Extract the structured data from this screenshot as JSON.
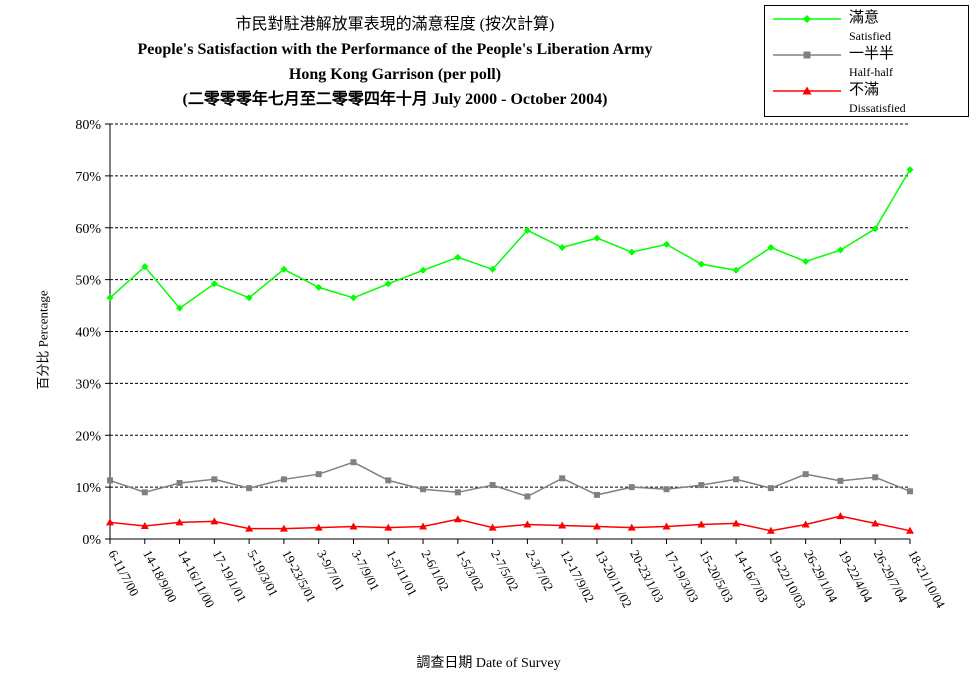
{
  "header": {
    "title_zh": "市民對駐港解放軍表現的滿意程度 (按次計算)",
    "title_en_1": "People's Satisfaction with the Performance of the People's Liberation Army",
    "title_en_2": "Hong Kong Garrison (per poll)",
    "subtitle": "(二零零零年七月至二零零四年十月 July 2000 -  October 2004)"
  },
  "legend": [
    {
      "zh": "滿意",
      "en": "Satisfied",
      "color": "#00ff00",
      "marker": "diamond"
    },
    {
      "zh": "一半半",
      "en": "Half-half",
      "color": "#808080",
      "marker": "square"
    },
    {
      "zh": "不滿",
      "en": "Dissatisfied",
      "color": "#ff0000",
      "marker": "triangle"
    }
  ],
  "chart_data": {
    "type": "line",
    "ylabel": "百分比 Percentage",
    "xlabel": "調查日期 Date of Survey",
    "ylim": [
      0,
      80
    ],
    "yticks": [
      "0%",
      "10%",
      "20%",
      "30%",
      "40%",
      "50%",
      "60%",
      "70%",
      "80%"
    ],
    "grid": "horizontal dashed",
    "legend_position": "top-right",
    "categories": [
      "6-11/7/00",
      "14-18/9/00",
      "14-16/11/00",
      "17-19/1/01",
      "5-19/3/01",
      "19-23/5/01",
      "3-9/7/01",
      "3-7/9/01",
      "1-5/11/01",
      "2-6/1/02",
      "1-5/3/02",
      "2-7/5/02",
      "2-3/7/02",
      "12-17/9/02",
      "13-20/11/02",
      "20-23/1/03",
      "17-19/3/03",
      "15-20/5/03",
      "14-16/7/03",
      "19-22/10/03",
      "26-29/1/04",
      "19-22/4/04",
      "26-29/7/04",
      "18-21/10/04"
    ],
    "series": [
      {
        "name": "滿意 Satisfied",
        "color": "#00ff00",
        "marker": "diamond",
        "values": [
          46.5,
          52.5,
          44.5,
          49.2,
          46.5,
          52.0,
          48.5,
          46.5,
          49.2,
          51.8,
          54.3,
          52.0,
          59.5,
          56.2,
          58.0,
          55.3,
          56.8,
          53.0,
          51.8,
          56.2,
          53.5,
          55.7,
          59.8,
          71.2
        ]
      },
      {
        "name": "一半半 Half-half",
        "color": "#808080",
        "marker": "square",
        "values": [
          11.3,
          9.0,
          10.8,
          11.5,
          9.8,
          11.5,
          12.5,
          14.8,
          11.3,
          9.6,
          9.0,
          10.4,
          8.2,
          11.7,
          8.5,
          10.0,
          9.6,
          10.4,
          11.5,
          9.8,
          12.5,
          11.2,
          11.9,
          9.2
        ]
      },
      {
        "name": "不滿 Dissatisfied",
        "color": "#ff0000",
        "marker": "triangle",
        "values": [
          3.2,
          2.5,
          3.2,
          3.4,
          2.0,
          2.0,
          2.2,
          2.4,
          2.2,
          2.4,
          3.8,
          2.2,
          2.8,
          2.6,
          2.4,
          2.2,
          2.4,
          2.8,
          3.0,
          1.6,
          2.8,
          4.4,
          3.0,
          1.6
        ]
      }
    ]
  }
}
